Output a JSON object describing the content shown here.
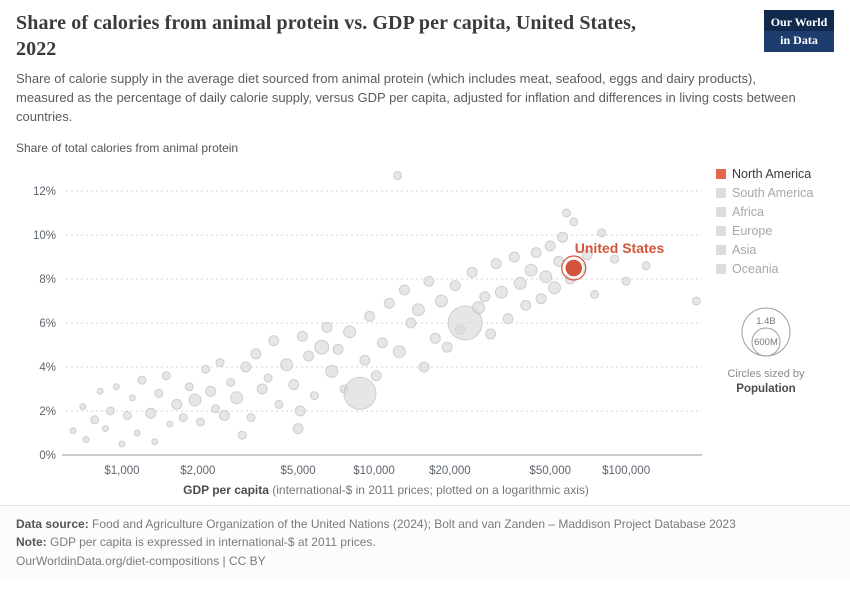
{
  "header": {
    "title": "Share of calories from animal protein vs. GDP per capita, United States, 2022",
    "subtitle": "Share of calorie supply in the average diet sourced from animal protein (which includes meat, seafood, eggs and dairy products), measured as the percentage of daily calorie supply, versus GDP per capita, adjusted for inflation and differences in living costs between countries.",
    "logo_line1": "Our World",
    "logo_line2": "in Data",
    "logo_bg": "#12294e"
  },
  "chart_data": {
    "type": "scatter",
    "title": "Share of calories from animal protein vs. GDP per capita, United States, 2022",
    "ylabel": "Share of total calories from animal protein",
    "xlabel_bold": "GDP per capita",
    "xlabel_rest": " (international-$ in 2011 prices; plotted on a logarithmic axis)",
    "x_scale": "log",
    "x_domain": [
      600,
      200000
    ],
    "y_domain": [
      0,
      13
    ],
    "x_ticks": [
      1000,
      2000,
      5000,
      10000,
      20000,
      50000,
      100000
    ],
    "x_tick_labels": [
      "$1,000",
      "$2,000",
      "$5,000",
      "$10,000",
      "$20,000",
      "$50,000",
      "$100,000"
    ],
    "y_ticks": [
      0,
      2,
      4,
      6,
      8,
      10,
      12
    ],
    "y_tick_labels": [
      "0%",
      "2%",
      "4%",
      "6%",
      "8%",
      "10%",
      "12%"
    ],
    "grid": "horizontal-dotted",
    "legend_position": "right",
    "point_color": "#d8d8d8",
    "point_stroke": "#bfbfbf",
    "highlight": {
      "label": "United States",
      "gdp": 62000,
      "pct": 8.5,
      "r": 9,
      "color": "#d2553b"
    },
    "points_format": [
      "gdp_international_dollars",
      "share_percent",
      "radius_px"
    ],
    "points": [
      [
        640,
        1.1,
        3
      ],
      [
        700,
        2.2,
        3
      ],
      [
        720,
        0.7,
        3
      ],
      [
        780,
        1.6,
        4
      ],
      [
        820,
        2.9,
        3
      ],
      [
        860,
        1.2,
        3
      ],
      [
        900,
        2.0,
        4
      ],
      [
        950,
        3.1,
        3
      ],
      [
        1000,
        0.5,
        3
      ],
      [
        1050,
        1.8,
        4
      ],
      [
        1100,
        2.6,
        3
      ],
      [
        1150,
        1.0,
        3
      ],
      [
        1200,
        3.4,
        4
      ],
      [
        1300,
        1.9,
        5
      ],
      [
        1350,
        0.6,
        3
      ],
      [
        1400,
        2.8,
        4
      ],
      [
        1500,
        3.6,
        4
      ],
      [
        1550,
        1.4,
        3
      ],
      [
        1650,
        2.3,
        5
      ],
      [
        1750,
        1.7,
        4
      ],
      [
        1850,
        3.1,
        4
      ],
      [
        1950,
        2.5,
        6
      ],
      [
        2050,
        1.5,
        4
      ],
      [
        2150,
        3.9,
        4
      ],
      [
        2250,
        2.9,
        5
      ],
      [
        2350,
        2.1,
        4
      ],
      [
        2450,
        4.2,
        4
      ],
      [
        2550,
        1.8,
        5
      ],
      [
        2700,
        3.3,
        4
      ],
      [
        2850,
        2.6,
        6
      ],
      [
        3000,
        0.9,
        4
      ],
      [
        3100,
        4.0,
        5
      ],
      [
        3250,
        1.7,
        4
      ],
      [
        3400,
        4.6,
        5
      ],
      [
        3600,
        3.0,
        5
      ],
      [
        3800,
        3.5,
        4
      ],
      [
        4000,
        5.2,
        5
      ],
      [
        4200,
        2.3,
        4
      ],
      [
        4500,
        4.1,
        6
      ],
      [
        4800,
        3.2,
        5
      ],
      [
        5000,
        1.2,
        5
      ],
      [
        5100,
        2.0,
        5
      ],
      [
        5200,
        5.4,
        5
      ],
      [
        5500,
        4.5,
        5
      ],
      [
        5800,
        2.7,
        4
      ],
      [
        6200,
        4.9,
        7
      ],
      [
        6500,
        5.8,
        5
      ],
      [
        6800,
        3.8,
        6
      ],
      [
        7200,
        4.8,
        5
      ],
      [
        7600,
        3.0,
        4
      ],
      [
        8000,
        5.6,
        6
      ],
      [
        8800,
        2.8,
        16
      ],
      [
        9200,
        4.3,
        5
      ],
      [
        9600,
        6.3,
        5
      ],
      [
        10200,
        3.6,
        5
      ],
      [
        10800,
        5.1,
        5
      ],
      [
        11500,
        6.9,
        5
      ],
      [
        12400,
        12.7,
        4
      ],
      [
        12600,
        4.7,
        6
      ],
      [
        13200,
        7.5,
        5
      ],
      [
        14000,
        6.0,
        5
      ],
      [
        15000,
        6.6,
        6
      ],
      [
        15800,
        4.0,
        5
      ],
      [
        16500,
        7.9,
        5
      ],
      [
        17500,
        5.3,
        5
      ],
      [
        18500,
        7.0,
        6
      ],
      [
        19500,
        4.9,
        5
      ],
      [
        21000,
        7.7,
        5
      ],
      [
        22000,
        5.7,
        5
      ],
      [
        23000,
        6.0,
        17
      ],
      [
        24500,
        8.3,
        5
      ],
      [
        26000,
        6.7,
        6
      ],
      [
        27500,
        7.2,
        5
      ],
      [
        29000,
        5.5,
        5
      ],
      [
        30500,
        8.7,
        5
      ],
      [
        32000,
        7.4,
        6
      ],
      [
        34000,
        6.2,
        5
      ],
      [
        36000,
        9.0,
        5
      ],
      [
        38000,
        7.8,
        6
      ],
      [
        40000,
        6.8,
        5
      ],
      [
        42000,
        8.4,
        6
      ],
      [
        44000,
        9.2,
        5
      ],
      [
        46000,
        7.1,
        5
      ],
      [
        48000,
        8.1,
        6
      ],
      [
        50000,
        9.5,
        5
      ],
      [
        52000,
        7.6,
        6
      ],
      [
        54000,
        8.8,
        5
      ],
      [
        56000,
        9.9,
        5
      ],
      [
        58000,
        11.0,
        4
      ],
      [
        60000,
        8.0,
        5
      ],
      [
        62000,
        10.6,
        4
      ],
      [
        66000,
        8.5,
        5
      ],
      [
        70000,
        9.1,
        5
      ],
      [
        75000,
        7.3,
        4
      ],
      [
        80000,
        10.1,
        4
      ],
      [
        90000,
        8.9,
        4
      ],
      [
        100000,
        7.9,
        4
      ],
      [
        120000,
        8.6,
        4
      ],
      [
        190000,
        7.0,
        4
      ]
    ]
  },
  "legend": {
    "items": [
      {
        "label": "North America",
        "color": "#e2654d",
        "active": true
      },
      {
        "label": "South America",
        "color": "#dcdcdc",
        "active": false
      },
      {
        "label": "Africa",
        "color": "#dcdcdc",
        "active": false
      },
      {
        "label": "Europe",
        "color": "#dcdcdc",
        "active": false
      },
      {
        "label": "Asia",
        "color": "#dcdcdc",
        "active": false
      },
      {
        "label": "Oceania",
        "color": "#dcdcdc",
        "active": false
      }
    ],
    "size_legend": {
      "big_label": "1.4B",
      "small_label": "600M",
      "caption": "Circles sized by",
      "caption_bold": "Population"
    }
  },
  "footer": {
    "source_label": "Data source:",
    "source_text": "Food and Agriculture Organization of the United Nations (2024); Bolt and van Zanden – Maddison Project Database 2023",
    "note_label": "Note:",
    "note_text": "GDP per capita is expressed in international-$ at 2011 prices.",
    "link_text": "OurWorldinData.org/diet-compositions",
    "separator": "|",
    "license": "CC BY"
  }
}
